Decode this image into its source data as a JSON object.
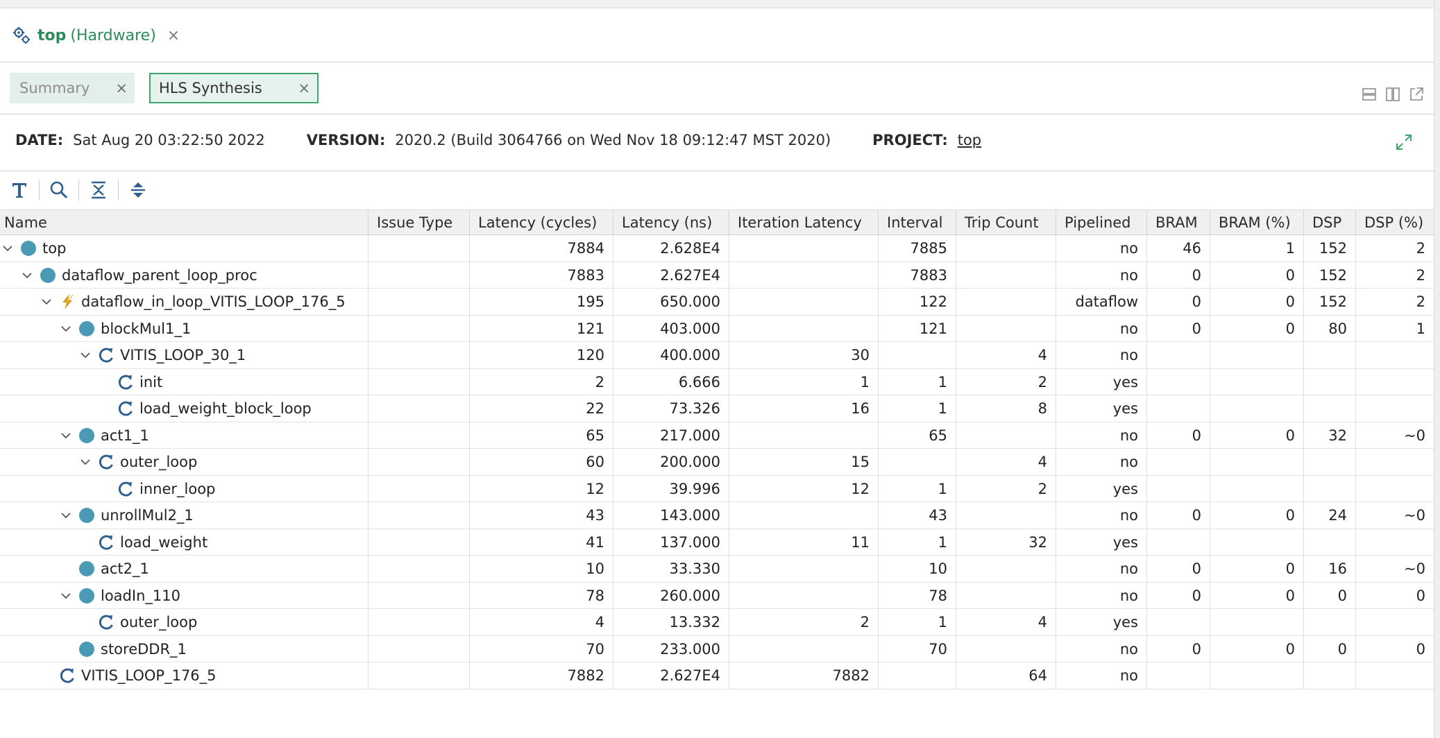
{
  "editor_tab": {
    "name": "top",
    "kind": "(Hardware)",
    "close": "×"
  },
  "tabs": [
    {
      "label": "Summary",
      "close": "×",
      "active": false
    },
    {
      "label": "HLS Synthesis",
      "close": "×",
      "active": true
    }
  ],
  "info": {
    "date_label": "DATE:",
    "date_value": "Sat Aug 20 03:22:50 2022",
    "version_label": "VERSION:",
    "version_value": "2020.2 (Build 3064766 on Wed Nov 18 09:12:47 MST 2020)",
    "project_label": "PROJECT:",
    "project_value": "top"
  },
  "colors": {
    "accent_green": "#2c8c5a",
    "module_dot": "#4a9ab5",
    "loop_icon": "#2e5f91",
    "dataflow_icon": "#d7a021"
  },
  "table": {
    "columns": [
      "Name",
      "Issue Type",
      "Latency (cycles)",
      "Latency (ns)",
      "Iteration Latency",
      "Interval",
      "Trip Count",
      "Pipelined",
      "BRAM",
      "BRAM (%)",
      "DSP",
      "DSP (%)"
    ],
    "rows": [
      {
        "depth": 0,
        "expand": true,
        "icon": "module-icon",
        "name": "top",
        "issue": "",
        "lat_cycles": "7884",
        "lat_ns": "2.628E4",
        "iter_lat": "",
        "interval": "7885",
        "trip": "",
        "pipelined": "no",
        "bram": "46",
        "bram_pct": "1",
        "dsp": "152",
        "dsp_pct": "2"
      },
      {
        "depth": 1,
        "expand": true,
        "icon": "module-icon",
        "name": "dataflow_parent_loop_proc",
        "issue": "",
        "lat_cycles": "7883",
        "lat_ns": "2.627E4",
        "iter_lat": "",
        "interval": "7883",
        "trip": "",
        "pipelined": "no",
        "bram": "0",
        "bram_pct": "0",
        "dsp": "152",
        "dsp_pct": "2"
      },
      {
        "depth": 2,
        "expand": true,
        "icon": "dataflow-icon",
        "name": "dataflow_in_loop_VITIS_LOOP_176_5",
        "issue": "",
        "lat_cycles": "195",
        "lat_ns": "650.000",
        "iter_lat": "",
        "interval": "122",
        "trip": "",
        "pipelined": "dataflow",
        "bram": "0",
        "bram_pct": "0",
        "dsp": "152",
        "dsp_pct": "2"
      },
      {
        "depth": 3,
        "expand": true,
        "icon": "module-icon",
        "name": "blockMul1_1",
        "issue": "",
        "lat_cycles": "121",
        "lat_ns": "403.000",
        "iter_lat": "",
        "interval": "121",
        "trip": "",
        "pipelined": "no",
        "bram": "0",
        "bram_pct": "0",
        "dsp": "80",
        "dsp_pct": "1"
      },
      {
        "depth": 4,
        "expand": true,
        "icon": "loop-icon",
        "name": "VITIS_LOOP_30_1",
        "issue": "",
        "lat_cycles": "120",
        "lat_ns": "400.000",
        "iter_lat": "30",
        "interval": "",
        "trip": "4",
        "pipelined": "no",
        "bram": "",
        "bram_pct": "",
        "dsp": "",
        "dsp_pct": ""
      },
      {
        "depth": 5,
        "expand": false,
        "icon": "loop-icon",
        "name": "init",
        "issue": "",
        "lat_cycles": "2",
        "lat_ns": "6.666",
        "iter_lat": "1",
        "interval": "1",
        "trip": "2",
        "pipelined": "yes",
        "bram": "",
        "bram_pct": "",
        "dsp": "",
        "dsp_pct": ""
      },
      {
        "depth": 5,
        "expand": false,
        "icon": "loop-icon",
        "name": "load_weight_block_loop",
        "issue": "",
        "lat_cycles": "22",
        "lat_ns": "73.326",
        "iter_lat": "16",
        "interval": "1",
        "trip": "8",
        "pipelined": "yes",
        "bram": "",
        "bram_pct": "",
        "dsp": "",
        "dsp_pct": ""
      },
      {
        "depth": 3,
        "expand": true,
        "icon": "module-icon",
        "name": "act1_1",
        "issue": "",
        "lat_cycles": "65",
        "lat_ns": "217.000",
        "iter_lat": "",
        "interval": "65",
        "trip": "",
        "pipelined": "no",
        "bram": "0",
        "bram_pct": "0",
        "dsp": "32",
        "dsp_pct": "~0"
      },
      {
        "depth": 4,
        "expand": true,
        "icon": "loop-icon",
        "name": "outer_loop",
        "issue": "",
        "lat_cycles": "60",
        "lat_ns": "200.000",
        "iter_lat": "15",
        "interval": "",
        "trip": "4",
        "pipelined": "no",
        "bram": "",
        "bram_pct": "",
        "dsp": "",
        "dsp_pct": ""
      },
      {
        "depth": 5,
        "expand": false,
        "icon": "loop-icon",
        "name": "inner_loop",
        "issue": "",
        "lat_cycles": "12",
        "lat_ns": "39.996",
        "iter_lat": "12",
        "interval": "1",
        "trip": "2",
        "pipelined": "yes",
        "bram": "",
        "bram_pct": "",
        "dsp": "",
        "dsp_pct": ""
      },
      {
        "depth": 3,
        "expand": true,
        "icon": "module-icon",
        "name": "unrollMul2_1",
        "issue": "",
        "lat_cycles": "43",
        "lat_ns": "143.000",
        "iter_lat": "",
        "interval": "43",
        "trip": "",
        "pipelined": "no",
        "bram": "0",
        "bram_pct": "0",
        "dsp": "24",
        "dsp_pct": "~0"
      },
      {
        "depth": 4,
        "expand": false,
        "icon": "loop-icon",
        "name": "load_weight",
        "issue": "",
        "lat_cycles": "41",
        "lat_ns": "137.000",
        "iter_lat": "11",
        "interval": "1",
        "trip": "32",
        "pipelined": "yes",
        "bram": "",
        "bram_pct": "",
        "dsp": "",
        "dsp_pct": ""
      },
      {
        "depth": 3,
        "expand": false,
        "icon": "module-icon",
        "name": "act2_1",
        "issue": "",
        "lat_cycles": "10",
        "lat_ns": "33.330",
        "iter_lat": "",
        "interval": "10",
        "trip": "",
        "pipelined": "no",
        "bram": "0",
        "bram_pct": "0",
        "dsp": "16",
        "dsp_pct": "~0"
      },
      {
        "depth": 3,
        "expand": true,
        "icon": "module-icon",
        "name": "loadIn_110",
        "issue": "",
        "lat_cycles": "78",
        "lat_ns": "260.000",
        "iter_lat": "",
        "interval": "78",
        "trip": "",
        "pipelined": "no",
        "bram": "0",
        "bram_pct": "0",
        "dsp": "0",
        "dsp_pct": "0"
      },
      {
        "depth": 4,
        "expand": false,
        "icon": "loop-icon",
        "name": "outer_loop",
        "issue": "",
        "lat_cycles": "4",
        "lat_ns": "13.332",
        "iter_lat": "2",
        "interval": "1",
        "trip": "4",
        "pipelined": "yes",
        "bram": "",
        "bram_pct": "",
        "dsp": "",
        "dsp_pct": ""
      },
      {
        "depth": 3,
        "expand": false,
        "icon": "module-icon",
        "name": "storeDDR_1",
        "issue": "",
        "lat_cycles": "70",
        "lat_ns": "233.000",
        "iter_lat": "",
        "interval": "70",
        "trip": "",
        "pipelined": "no",
        "bram": "0",
        "bram_pct": "0",
        "dsp": "0",
        "dsp_pct": "0"
      },
      {
        "depth": 2,
        "expand": false,
        "icon": "loop-icon",
        "name": "VITIS_LOOP_176_5",
        "issue": "",
        "lat_cycles": "7882",
        "lat_ns": "2.627E4",
        "iter_lat": "7882",
        "interval": "",
        "trip": "64",
        "pipelined": "no",
        "bram": "",
        "bram_pct": "",
        "dsp": "",
        "dsp_pct": ""
      }
    ]
  }
}
